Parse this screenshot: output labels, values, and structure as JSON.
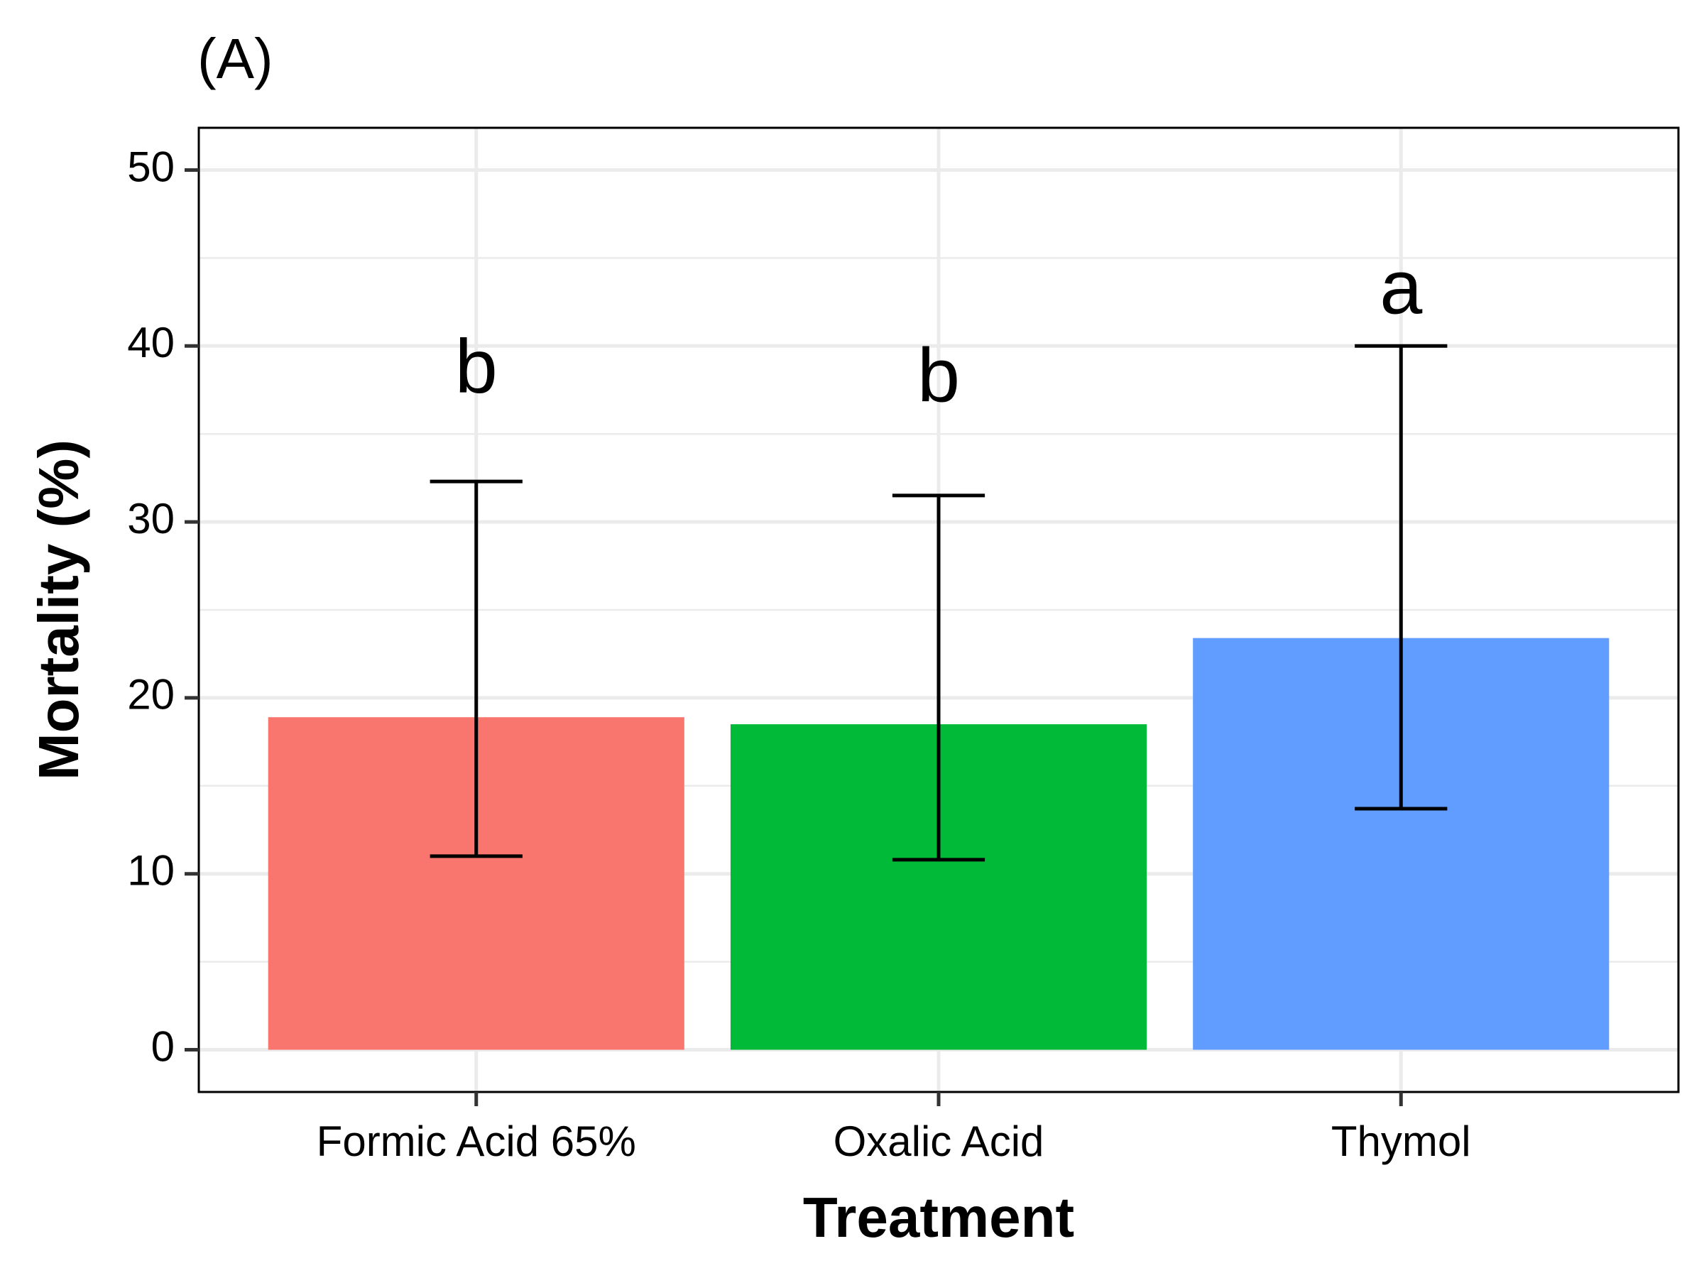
{
  "chart_data": {
    "type": "bar",
    "panel_tag": "(A)",
    "xlabel": "Treatment",
    "ylabel": "Mortality (%)",
    "ylim": [
      -2.4,
      52.4
    ],
    "yticks": [
      0,
      10,
      20,
      30,
      40,
      50
    ],
    "y_minor_grid": [
      5,
      15,
      25,
      35,
      45
    ],
    "grid": true,
    "legend": "none",
    "categories": [
      "Formic Acid 65%",
      "Oxalic Acid",
      "Thymol"
    ],
    "values": [
      18.9,
      18.5,
      23.4
    ],
    "error_low": [
      11.0,
      10.8,
      13.7
    ],
    "error_high": [
      32.3,
      31.5,
      40.0
    ],
    "significance_letters": [
      "b",
      "b",
      "a"
    ],
    "significance_letter_y": [
      38.5,
      38.0,
      43.0
    ],
    "colors": [
      "#F8766D",
      "#00BA38",
      "#619CFF"
    ],
    "grid_color": "#EBEBEB"
  }
}
